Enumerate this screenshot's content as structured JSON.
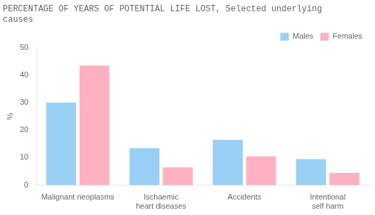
{
  "chart_data": {
    "type": "bar",
    "title": "PERCENTAGE OF YEARS OF POTENTIAL LIFE LOST, Selected underlying\ncauses",
    "ylabel": "%",
    "categories": [
      "Malignant neoplasms",
      "Ischaemic\nheart diseases",
      "Accidents",
      "Intentional\nself harm"
    ],
    "series": [
      {
        "name": "Males",
        "values": [
          30,
          13.5,
          16.5,
          9.5
        ]
      },
      {
        "name": "Females",
        "values": [
          43.5,
          6.5,
          10.5,
          4.5
        ]
      }
    ],
    "ylim": [
      0,
      50
    ],
    "yticks": [
      0,
      10,
      20,
      30,
      40,
      50
    ],
    "grid": false,
    "legend": "upper right"
  }
}
